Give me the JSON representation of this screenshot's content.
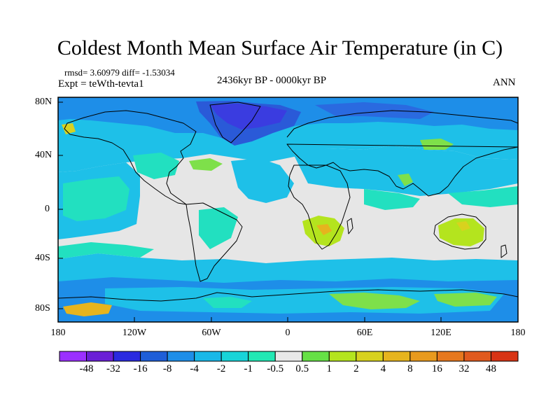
{
  "title": "Coldest Month Mean Surface Air Temperature (in C)",
  "stats": "rmsd= 3.60979 diff= -1.53034",
  "experiment": "Expt = teWth-tevta1",
  "period": "2436kyr BP - 0000kyr BP",
  "season": "ANN",
  "map": {
    "projection": "cylindrical-equidistant",
    "lon_range": [
      -180,
      180
    ],
    "lat_range": [
      -90,
      90
    ],
    "lat_ticks": [
      {
        "value": 80,
        "label": "80N"
      },
      {
        "value": 40,
        "label": "40N"
      },
      {
        "value": 0,
        "label": "0"
      },
      {
        "value": -40,
        "label": "40S"
      },
      {
        "value": -80,
        "label": "80S"
      }
    ],
    "lon_ticks": [
      {
        "value": -180,
        "label": "180"
      },
      {
        "value": -120,
        "label": "120W"
      },
      {
        "value": -60,
        "label": "60W"
      },
      {
        "value": 0,
        "label": "0"
      },
      {
        "value": 60,
        "label": "60E"
      },
      {
        "value": 120,
        "label": "120E"
      },
      {
        "value": 180,
        "label": "180"
      }
    ],
    "background_color": "#e6e6e6"
  },
  "colorbar": {
    "colors": [
      "#9b30ff",
      "#6a1fd6",
      "#2a2ae0",
      "#1e5ed8",
      "#1e8ee8",
      "#19b8e8",
      "#18d4d8",
      "#22e8b4",
      "#e8e8e8",
      "#66e046",
      "#b4e41e",
      "#d8d21e",
      "#e6b41e",
      "#e89a1e",
      "#e6781e",
      "#e05a1e",
      "#d83414"
    ],
    "labels": [
      "-48",
      "-32",
      "-16",
      "-8",
      "-4",
      "-2",
      "-1",
      "-0.5",
      "0.5",
      "1",
      "2",
      "4",
      "8",
      "16",
      "32",
      "48"
    ]
  }
}
